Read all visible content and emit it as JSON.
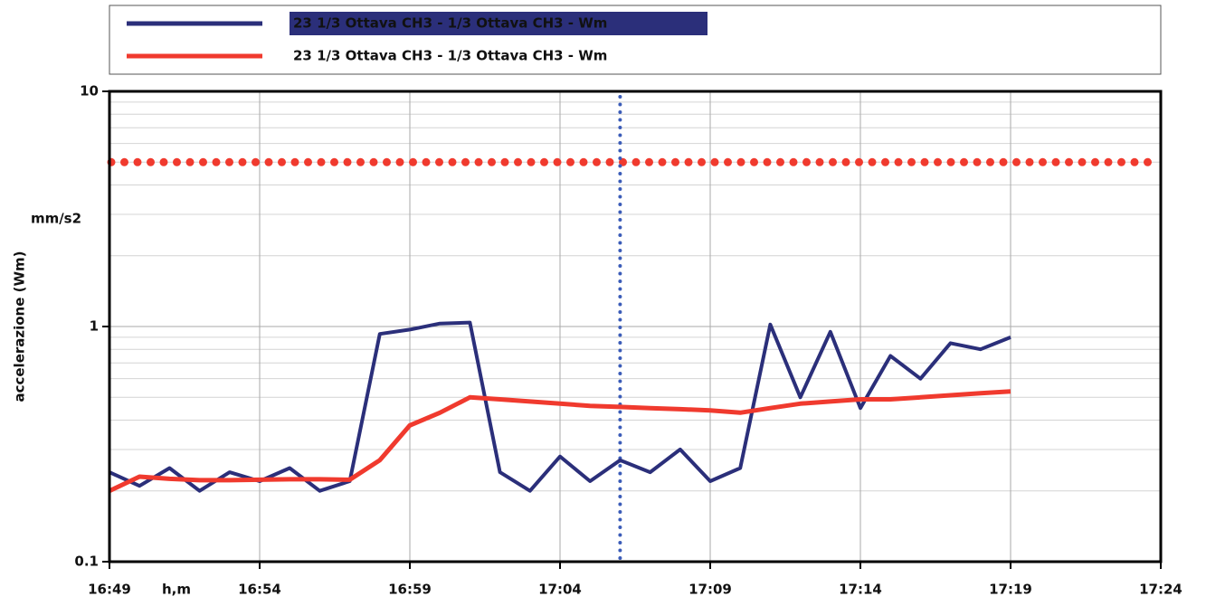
{
  "chart_data": {
    "type": "line",
    "y_label": "accelerazione (Wm)",
    "y_unit": "mm/s2",
    "x_label": "h,m",
    "x": [
      "16:49",
      "16:50",
      "16:51",
      "16:52",
      "16:53",
      "16:54",
      "16:55",
      "16:56",
      "16:57",
      "16:58",
      "16:59",
      "17:00",
      "17:01",
      "17:02",
      "17:03",
      "17:04",
      "17:05",
      "17:06",
      "17:07",
      "17:08",
      "17:09",
      "17:10",
      "17:11",
      "17:12",
      "17:13",
      "17:14",
      "17:15",
      "17:16",
      "17:17",
      "17:18",
      "17:19"
    ],
    "series": [
      {
        "name": "23 1/3 Ottava CH3 - 1/3 Ottava CH3 - Wm",
        "color": "#2b2f7a",
        "values": [
          0.24,
          0.21,
          0.25,
          0.2,
          0.24,
          0.22,
          0.25,
          0.2,
          0.22,
          0.93,
          0.97,
          1.03,
          1.04,
          0.24,
          0.2,
          0.28,
          0.22,
          0.27,
          0.24,
          0.3,
          0.22,
          0.25,
          1.02,
          0.5,
          0.95,
          0.45,
          0.75,
          0.6,
          0.85,
          0.8,
          0.9
        ]
      },
      {
        "name": "23 1/3 Ottava CH3 - 1/3 Ottava CH3 - Wm",
        "color": "#f03a2e",
        "values": [
          0.2,
          0.23,
          0.225,
          0.222,
          0.222,
          0.223,
          0.224,
          0.224,
          0.223,
          0.27,
          0.38,
          0.43,
          0.5,
          0.49,
          0.48,
          0.47,
          0.46,
          0.455,
          0.45,
          0.445,
          0.44,
          0.43,
          0.45,
          0.47,
          0.48,
          0.49,
          0.49,
          0.5,
          0.51,
          0.52,
          0.53
        ]
      }
    ],
    "threshold": {
      "value": 5,
      "color": "#f03a2e"
    },
    "cursor": {
      "x": "17:06",
      "color": "#3b5cb8"
    },
    "xlim": [
      "16:49",
      "17:24"
    ],
    "xticks": [
      "16:49",
      "16:54",
      "16:59",
      "17:04",
      "17:09",
      "17:14",
      "17:19",
      "17:24"
    ],
    "ylim": [
      0.1,
      10
    ],
    "yticks": [
      0.1,
      1,
      10
    ],
    "yminorticks": [
      0.2,
      0.3,
      0.4,
      0.5,
      0.6,
      0.7,
      0.8,
      0.9,
      2,
      3,
      4,
      5,
      6,
      7,
      8,
      9
    ],
    "log_y": true,
    "grid": true
  }
}
